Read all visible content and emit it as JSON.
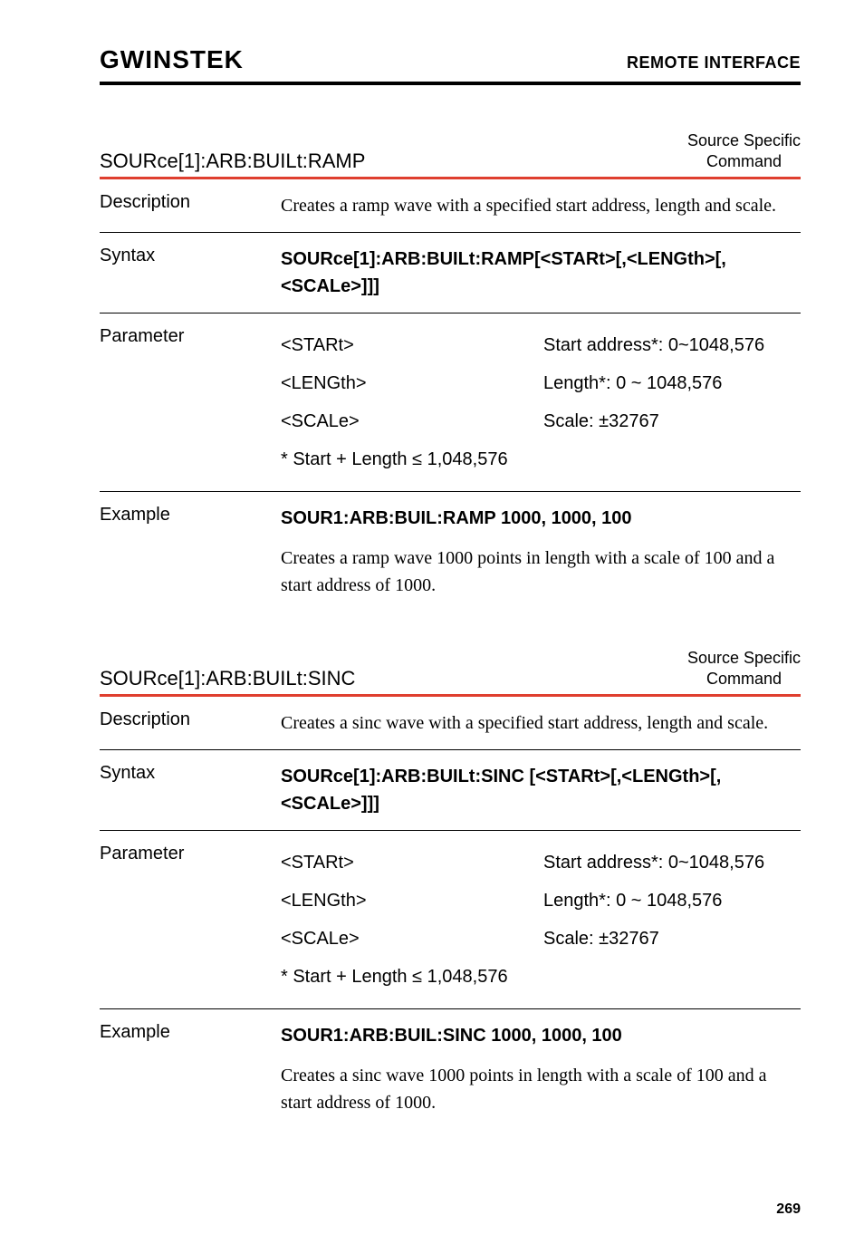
{
  "header": {
    "brand": "GWINSTEK",
    "section_title": "REMOTE INTERFACE"
  },
  "commands": [
    {
      "name": "SOURce[1]:ARB:BUILt:RAMP",
      "type_line1": "Source Specific",
      "type_line2": "Command",
      "description": "Creates a ramp wave with a specified start address, length and scale.",
      "syntax": "SOURce[1]:ARB:BUILt:RAMP[<STARt>[,<LENGth>[,<SCALe>]]]",
      "parameters": [
        {
          "name": "<STARt>",
          "value": "Start address*: 0~1048,576"
        },
        {
          "name": "<LENGth>",
          "value": "Length*: 0 ~ 1048,576"
        },
        {
          "name": "<SCALe>",
          "value": "Scale: ±32767"
        }
      ],
      "param_note": "* Start + Length ≤ 1,048,576",
      "example_cmd": "SOUR1:ARB:BUIL:RAMP 1000, 1000, 100",
      "example_desc": "Creates a ramp wave 1000 points in length with a scale of 100 and a start address of 1000."
    },
    {
      "name": "SOURce[1]:ARB:BUILt:SINC",
      "type_line1": "Source Specific",
      "type_line2": "Command",
      "description": "Creates a sinc wave with a specified start address, length and scale.",
      "syntax": "SOURce[1]:ARB:BUILt:SINC [<STARt>[,<LENGth>[,<SCALe>]]]",
      "parameters": [
        {
          "name": "<STARt>",
          "value": "Start address*: 0~1048,576"
        },
        {
          "name": "<LENGth>",
          "value": "Length*: 0 ~ 1048,576"
        },
        {
          "name": "<SCALe>",
          "value": "Scale: ±32767"
        }
      ],
      "param_note": "* Start + Length ≤ 1,048,576",
      "example_cmd": "SOUR1:ARB:BUIL:SINC 1000, 1000, 100",
      "example_desc": "Creates a sinc wave 1000 points in length with a scale of 100 and a start address of 1000."
    }
  ],
  "labels": {
    "description": "Description",
    "syntax": "Syntax",
    "parameter": "Parameter",
    "example": "Example"
  },
  "page_number": "269",
  "colors": {
    "accent": "#df3f2f",
    "text": "#000000",
    "background": "#ffffff"
  }
}
